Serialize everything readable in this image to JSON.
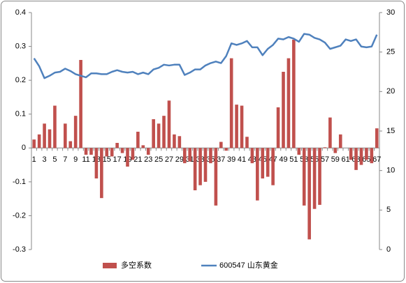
{
  "chart_data": {
    "type": "bar",
    "categories": [
      "1",
      null,
      "3",
      null,
      "5",
      null,
      "7",
      null,
      "9",
      null,
      "11",
      null,
      "13",
      null,
      "15",
      null,
      "17",
      null,
      "19",
      null,
      "21",
      null,
      "23",
      null,
      "25",
      null,
      "27",
      null,
      "29",
      null,
      "31",
      null,
      "33",
      null,
      "35",
      null,
      "37",
      null,
      "39",
      null,
      "41",
      null,
      "43",
      null,
      "45",
      null,
      "47",
      null,
      "49",
      null,
      "51",
      null,
      "53",
      null,
      "55",
      null,
      "57",
      null,
      "59",
      null,
      "61",
      null,
      "63",
      null,
      "65",
      null,
      "67"
    ],
    "series": [
      {
        "name": "多空系数",
        "type": "bar",
        "axis": "y",
        "color": "#c0504d",
        "values": [
          0.025,
          0.04,
          0.072,
          0.055,
          0.125,
          0,
          0.072,
          0.02,
          0.095,
          0.26,
          -0.02,
          -0.02,
          -0.09,
          -0.148,
          -0.025,
          -0.025,
          0.015,
          -0.015,
          -0.055,
          -0.035,
          0.048,
          0.008,
          -0.02,
          0.085,
          0.072,
          0.095,
          0.14,
          0.04,
          0.035,
          -0.045,
          -0.04,
          -0.125,
          -0.11,
          -0.1,
          -0.045,
          -0.17,
          0.018,
          -0.008,
          0.265,
          0.128,
          0.125,
          0.033,
          -0.045,
          -0.155,
          -0.09,
          -0.085,
          -0.11,
          0.12,
          0.225,
          0.265,
          0.32,
          -0.02,
          -0.17,
          -0.27,
          -0.18,
          -0.168,
          0.002,
          0.09,
          -0.015,
          0.04,
          0,
          -0.035,
          -0.065,
          -0.05,
          -0.035,
          -0.045,
          0.058
        ]
      },
      {
        "name": "600547 山东黄金",
        "type": "line",
        "axis": "y2",
        "color": "#4f81bd",
        "values": [
          24.2,
          23.2,
          21.7,
          22.0,
          22.4,
          22.5,
          22.9,
          22.6,
          22.2,
          22.0,
          21.8,
          22.3,
          22.3,
          22.2,
          22.2,
          22.5,
          22.7,
          22.5,
          22.4,
          22.5,
          22.2,
          22.4,
          22.2,
          22.8,
          23.0,
          23.4,
          23.3,
          23.4,
          23.4,
          22.1,
          22.4,
          22.8,
          22.8,
          23.3,
          23.6,
          23.8,
          23.6,
          24.5,
          26.1,
          25.9,
          26.1,
          26.4,
          25.6,
          25.6,
          24.6,
          25.4,
          25.9,
          26.7,
          26.6,
          26.9,
          26.7,
          26.3,
          27.3,
          27.2,
          26.8,
          26.6,
          26.2,
          25.4,
          25.6,
          25.8,
          26.6,
          26.4,
          26.6,
          25.7,
          25.6,
          25.7,
          27.2
        ]
      }
    ],
    "ylim": [
      -0.3,
      0.4
    ],
    "yticks": [
      -0.3,
      -0.2,
      -0.1,
      0,
      0.1,
      0.2,
      0.3,
      0.4
    ],
    "y2lim": [
      0,
      30
    ],
    "y2ticks": [
      0,
      5,
      10,
      15,
      20,
      25,
      30
    ],
    "grid": false,
    "legend": "bottom"
  }
}
